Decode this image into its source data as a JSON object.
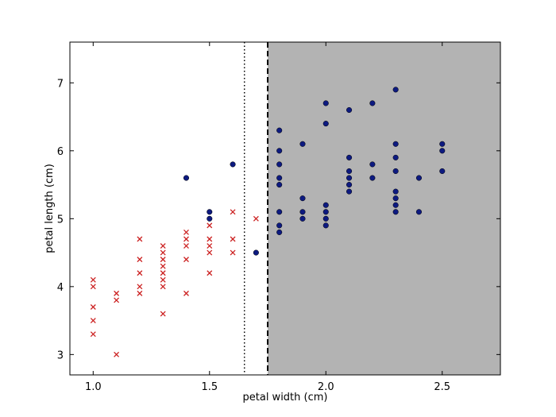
{
  "chart_data": {
    "type": "scatter",
    "title": "",
    "xlabel": "petal width (cm)",
    "ylabel": "petal length (cm)",
    "xlim": [
      0.9,
      2.75
    ],
    "ylim": [
      2.7,
      7.6
    ],
    "xticks": [
      1.0,
      1.5,
      2.0,
      2.5
    ],
    "yticks": [
      3,
      4,
      5,
      6,
      7
    ],
    "xtick_labels": [
      "1.0",
      "1.5",
      "2.0",
      "2.5"
    ],
    "ytick_labels": [
      "3",
      "4",
      "5",
      "6",
      "7"
    ],
    "grid": false,
    "legend": "none",
    "shaded_region": {
      "x_from": 1.75,
      "x_to": 2.75,
      "color": "#b3b3b3"
    },
    "vertical_lines": [
      {
        "x": 1.65,
        "style": "dotted",
        "color": "#000000"
      },
      {
        "x": 1.75,
        "style": "dashed",
        "color": "#000000"
      }
    ],
    "series": [
      {
        "marker": "x",
        "color": "#cc2222",
        "points": [
          [
            1.0,
            4.1
          ],
          [
            1.0,
            4.0
          ],
          [
            1.0,
            3.7
          ],
          [
            1.0,
            3.5
          ],
          [
            1.0,
            3.3
          ],
          [
            1.1,
            3.9
          ],
          [
            1.1,
            3.8
          ],
          [
            1.1,
            3.0
          ],
          [
            1.2,
            4.7
          ],
          [
            1.2,
            4.4
          ],
          [
            1.2,
            4.2
          ],
          [
            1.2,
            4.0
          ],
          [
            1.2,
            3.9
          ],
          [
            1.3,
            4.6
          ],
          [
            1.3,
            4.5
          ],
          [
            1.3,
            4.4
          ],
          [
            1.3,
            4.3
          ],
          [
            1.3,
            4.2
          ],
          [
            1.3,
            4.1
          ],
          [
            1.3,
            4.0
          ],
          [
            1.3,
            3.6
          ],
          [
            1.4,
            4.8
          ],
          [
            1.4,
            4.7
          ],
          [
            1.4,
            4.6
          ],
          [
            1.4,
            4.4
          ],
          [
            1.4,
            3.9
          ],
          [
            1.5,
            4.9
          ],
          [
            1.5,
            4.7
          ],
          [
            1.5,
            4.6
          ],
          [
            1.5,
            4.5
          ],
          [
            1.5,
            4.2
          ],
          [
            1.6,
            5.1
          ],
          [
            1.6,
            4.7
          ],
          [
            1.6,
            4.5
          ],
          [
            1.7,
            5.0
          ]
        ]
      },
      {
        "marker": "circle",
        "color": "#0d1a80",
        "points": [
          [
            1.4,
            5.6
          ],
          [
            1.5,
            5.1
          ],
          [
            1.5,
            5.0
          ],
          [
            1.6,
            5.8
          ],
          [
            1.7,
            4.5
          ],
          [
            1.8,
            6.3
          ],
          [
            1.8,
            6.0
          ],
          [
            1.8,
            5.8
          ],
          [
            1.8,
            5.6
          ],
          [
            1.8,
            5.5
          ],
          [
            1.8,
            5.1
          ],
          [
            1.8,
            4.9
          ],
          [
            1.8,
            4.8
          ],
          [
            1.9,
            6.1
          ],
          [
            1.9,
            5.3
          ],
          [
            1.9,
            5.1
          ],
          [
            1.9,
            5.0
          ],
          [
            2.0,
            6.7
          ],
          [
            2.0,
            6.4
          ],
          [
            2.0,
            5.2
          ],
          [
            2.0,
            5.1
          ],
          [
            2.0,
            5.0
          ],
          [
            2.0,
            4.9
          ],
          [
            2.1,
            6.6
          ],
          [
            2.1,
            5.9
          ],
          [
            2.1,
            5.7
          ],
          [
            2.1,
            5.6
          ],
          [
            2.1,
            5.5
          ],
          [
            2.1,
            5.4
          ],
          [
            2.2,
            6.7
          ],
          [
            2.2,
            5.8
          ],
          [
            2.2,
            5.6
          ],
          [
            2.3,
            6.9
          ],
          [
            2.3,
            6.1
          ],
          [
            2.3,
            5.9
          ],
          [
            2.3,
            5.7
          ],
          [
            2.3,
            5.4
          ],
          [
            2.3,
            5.3
          ],
          [
            2.3,
            5.2
          ],
          [
            2.3,
            5.1
          ],
          [
            2.4,
            5.6
          ],
          [
            2.4,
            5.1
          ],
          [
            2.5,
            6.1
          ],
          [
            2.5,
            6.0
          ],
          [
            2.5,
            5.7
          ]
        ]
      }
    ]
  }
}
